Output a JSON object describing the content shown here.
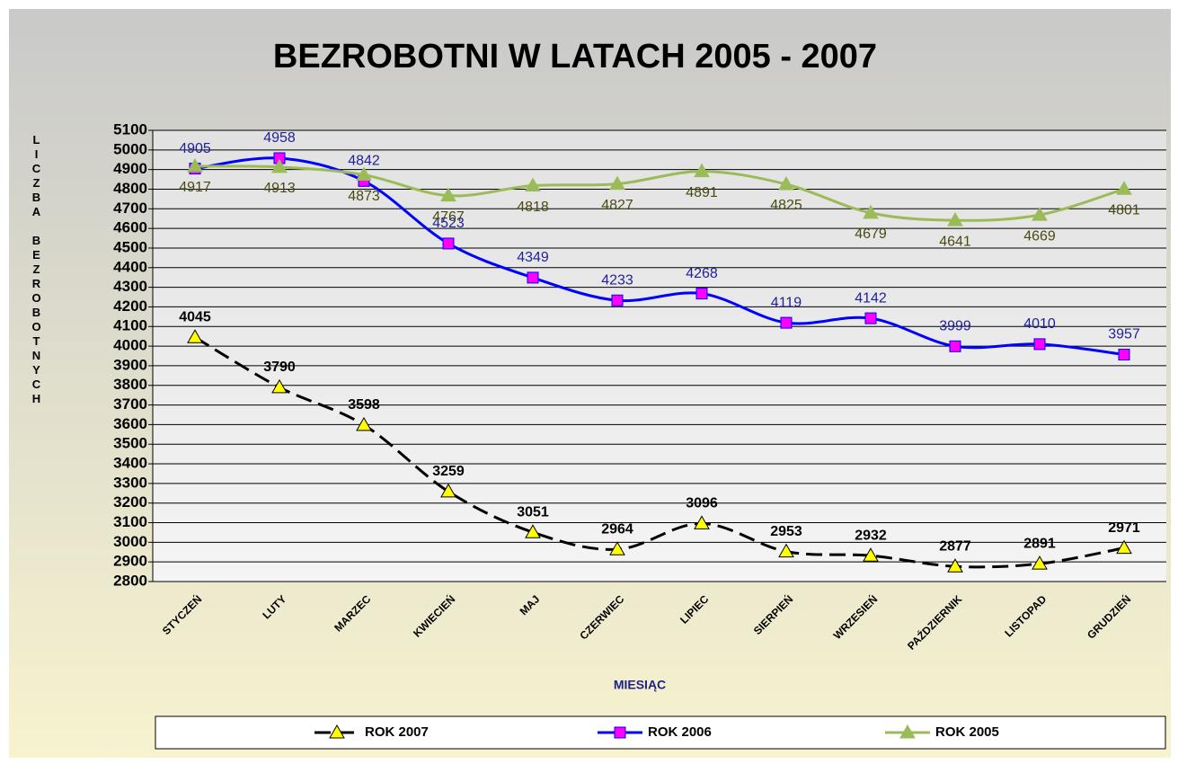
{
  "chart_data": {
    "type": "line",
    "title": "BEZROBOTNI W LATACH 2005 - 2007",
    "xlabel": "MIESIĄC",
    "ylabel": "LICZBA BEZROBOTNYCH",
    "categories": [
      "STYCZEŃ",
      "LUTY",
      "MARZEC",
      "KWIECIEŃ",
      "MAJ",
      "CZERWIEC",
      "LIPIEC",
      "SIERPIEŃ",
      "WRZESIEŃ",
      "PAŹDZIERNIK",
      "LISTOPAD",
      "GRUDZIEŃ"
    ],
    "series": [
      {
        "name": "ROK 2007",
        "color": "#000000",
        "marker": "triangle",
        "marker_color": "#ffff00",
        "line_style": "dashed",
        "label_position": "above",
        "label_color": "#000000",
        "values": [
          4045,
          3790,
          3598,
          3259,
          3051,
          2964,
          3096,
          2953,
          2932,
          2877,
          2891,
          2971
        ]
      },
      {
        "name": "ROK 2006",
        "color": "#0000ff",
        "marker": "square",
        "marker_color": "#ff00ff",
        "line_style": "solid",
        "label_position": "above",
        "label_color": "#1f1f9a",
        "values": [
          4905,
          4958,
          4842,
          4523,
          4349,
          4233,
          4268,
          4119,
          4142,
          3999,
          4010,
          3957
        ]
      },
      {
        "name": "ROK 2005",
        "color": "#9bbb59",
        "marker": "triangle",
        "marker_color": "#9bbb59",
        "line_style": "solid",
        "label_position": "below",
        "label_color": "#4a4a10",
        "values": [
          4917,
          4913,
          4873,
          4767,
          4818,
          4827,
          4891,
          4825,
          4679,
          4641,
          4669,
          4801
        ]
      }
    ],
    "ylim": [
      2800,
      5100
    ],
    "yticks": [
      2800,
      2900,
      3000,
      3100,
      3200,
      3300,
      3400,
      3500,
      3600,
      3700,
      3800,
      3900,
      4000,
      4100,
      4200,
      4300,
      4400,
      4500,
      4600,
      4700,
      4800,
      4900,
      5000,
      5100
    ],
    "grid": true,
    "smooth": true,
    "legend": "bottom"
  }
}
